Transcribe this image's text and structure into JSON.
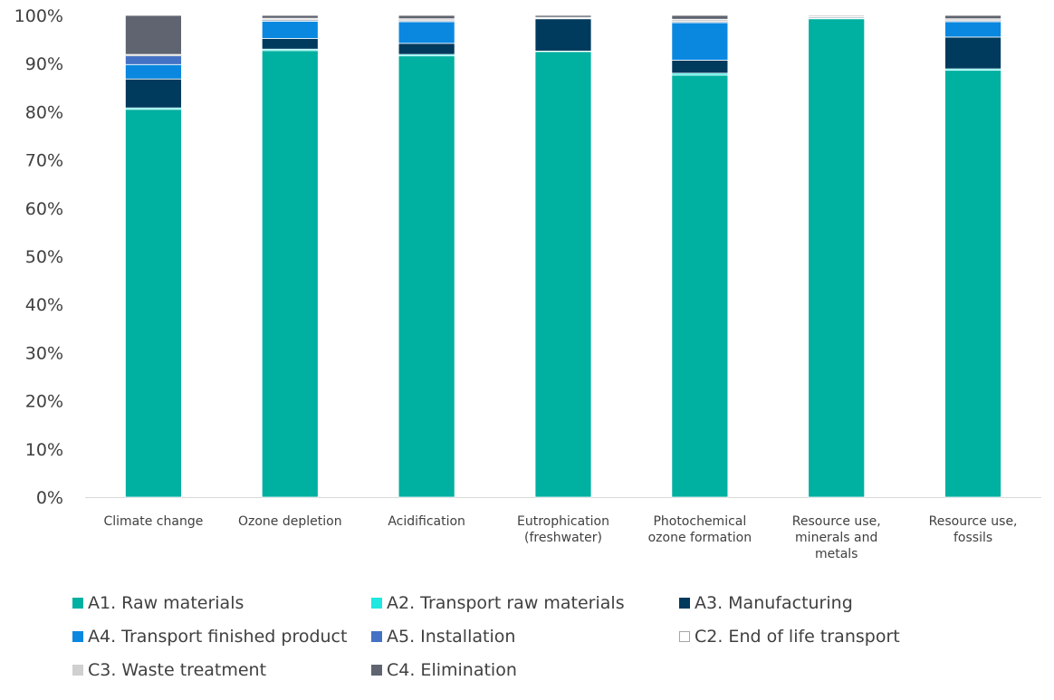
{
  "chart_data": {
    "type": "bar",
    "stacked": true,
    "percent": true,
    "ylim": [
      0,
      100
    ],
    "yticks": [
      "0%",
      "10%",
      "20%",
      "30%",
      "40%",
      "50%",
      "60%",
      "70%",
      "80%",
      "90%",
      "100%"
    ],
    "grid": false,
    "legend_position": "bottom",
    "categories": [
      [
        "Climate change"
      ],
      [
        "Ozone depletion"
      ],
      [
        "Acidification"
      ],
      [
        "Eutrophication",
        "(freshwater)"
      ],
      [
        "Photochemical",
        "ozone formation"
      ],
      [
        "Resource use,",
        "minerals and",
        "metals"
      ],
      [
        "Resource use,",
        "fossils"
      ]
    ],
    "series": [
      {
        "name": "A1. Raw materials",
        "color": "#00b0a0",
        "values": [
          80.5,
          92.7,
          91.6,
          92.5,
          87.6,
          99.3,
          88.6
        ]
      },
      {
        "name": "A2. Transport raw materials",
        "color": "#1ee8e0",
        "values": [
          0.3,
          0.3,
          0.3,
          0.1,
          0.4,
          0.1,
          0.3
        ]
      },
      {
        "name": "A3. Manufacturing",
        "color": "#003a5c",
        "values": [
          6.0,
          2.2,
          2.3,
          6.7,
          2.7,
          0.2,
          6.6
        ]
      },
      {
        "name": "A4. Transport finished product",
        "color": "#0a88e0",
        "values": [
          3.0,
          3.6,
          4.5,
          0.1,
          7.8,
          0.1,
          3.2
        ]
      },
      {
        "name": "A5. Installation",
        "color": "#4472c4",
        "values": [
          1.8,
          0.2,
          0.2,
          0.0,
          0.2,
          0.0,
          0.2
        ]
      },
      {
        "name": "C2. End of life transport",
        "color": "#ffffff",
        "stroke": "#a6a6a6",
        "values": [
          0.1,
          0.1,
          0.1,
          0.0,
          0.1,
          0.0,
          0.1
        ]
      },
      {
        "name": "C3. Waste treatment",
        "color": "#d0d0d0",
        "values": [
          0.2,
          0.3,
          0.3,
          0.2,
          0.4,
          0.1,
          0.3
        ]
      },
      {
        "name": "C4. Elimination",
        "color": "#5f6470",
        "values": [
          8.1,
          0.6,
          0.7,
          0.4,
          0.8,
          0.2,
          0.7
        ]
      }
    ]
  }
}
